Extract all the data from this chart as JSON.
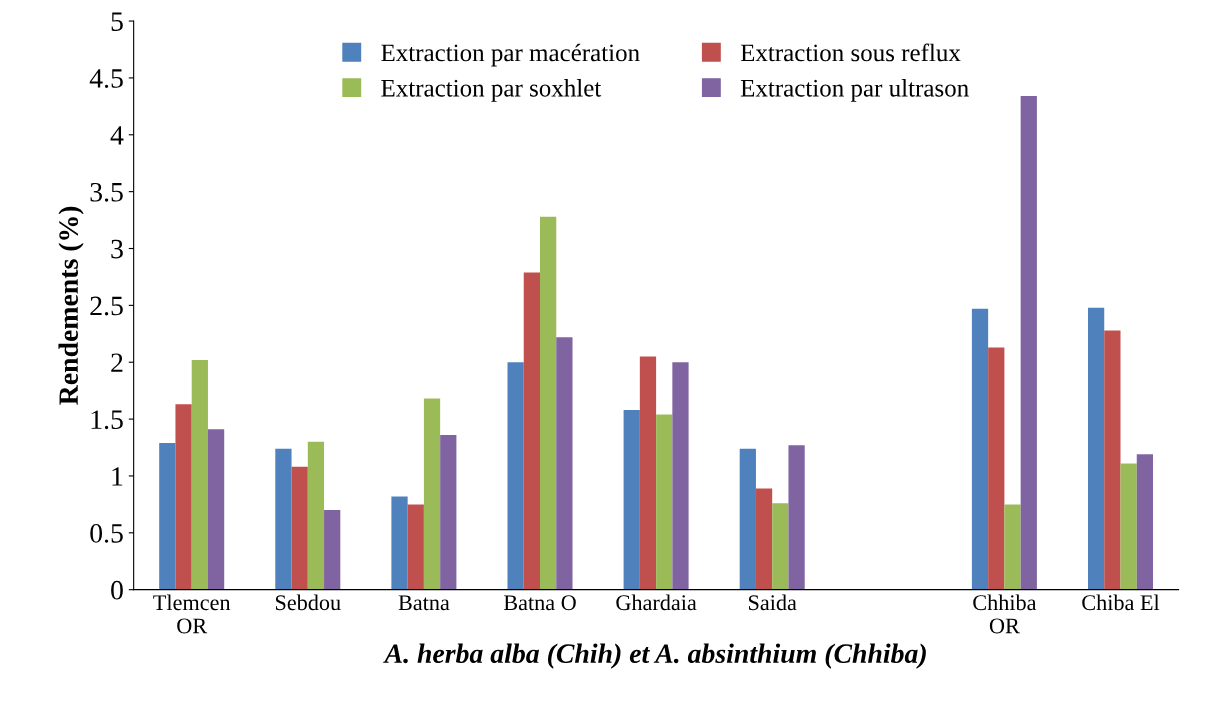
{
  "chart_data": {
    "type": "bar",
    "xlabel": "A. herba alba (Chih) et A. absinthium (Chhiba)",
    "ylabel": "Rendements (%)",
    "categories": [
      "Tlemcen\nOR",
      "Sebdou",
      "Batna",
      "Batna O",
      "Ghardaia",
      "Saida",
      null,
      "Chhiba\nOR",
      "Chiba El"
    ],
    "series": [
      {
        "name": "Extraction par macération",
        "color": "#4f81bd",
        "values": [
          1.29,
          1.24,
          0.82,
          2.0,
          1.58,
          1.24,
          null,
          2.47,
          2.48
        ]
      },
      {
        "name": "Extraction sous reflux",
        "color": "#c0504d",
        "values": [
          1.63,
          1.08,
          0.75,
          2.79,
          2.05,
          0.89,
          null,
          2.13,
          2.28
        ]
      },
      {
        "name": "Extraction par soxhlet",
        "color": "#9bbb59",
        "values": [
          2.02,
          1.3,
          1.68,
          3.28,
          1.54,
          0.76,
          null,
          0.75,
          1.11
        ]
      },
      {
        "name": "Extraction par ultrason",
        "color": "#8064a2",
        "values": [
          1.41,
          0.7,
          1.36,
          2.22,
          2.0,
          1.27,
          null,
          4.34,
          1.19
        ]
      }
    ],
    "ylim": [
      0,
      5
    ],
    "yticks": [
      0,
      0.5,
      1,
      1.5,
      2,
      2.5,
      3,
      3.5,
      4,
      4.5,
      5
    ],
    "grid": false,
    "legend": "top"
  }
}
